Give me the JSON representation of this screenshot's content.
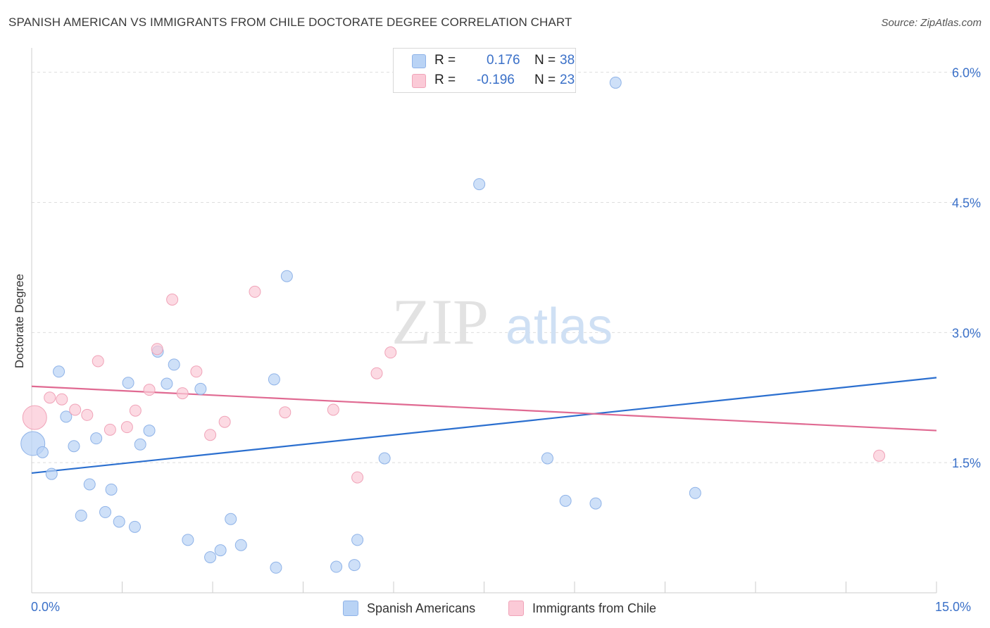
{
  "title": "SPANISH AMERICAN VS IMMIGRANTS FROM CHILE DOCTORATE DEGREE CORRELATION CHART",
  "source": "Source: ZipAtlas.com",
  "watermark": {
    "zip": "ZIP",
    "atlas": "atlas"
  },
  "legend": {
    "rows": [
      {
        "r_label": "R =",
        "r_value": "0.176",
        "n_label": "N =",
        "n_value": "38",
        "color": "#b9d3f5",
        "border": "#8fb3e8"
      },
      {
        "r_label": "R =",
        "r_value": "-0.196",
        "n_label": "N =",
        "n_value": "23",
        "color": "#fbcad7",
        "border": "#f0a3b8"
      }
    ]
  },
  "bottom_legend": [
    {
      "label": "Spanish Americans",
      "color": "#b9d3f5",
      "border": "#8fb3e8"
    },
    {
      "label": "Immigrants from Chile",
      "color": "#fbcad7",
      "border": "#f0a3b8"
    }
  ],
  "chart_data": {
    "type": "scatter",
    "title": "SPANISH AMERICAN VS IMMIGRANTS FROM CHILE DOCTORATE DEGREE CORRELATION CHART",
    "xlabel": "",
    "ylabel": "Doctorate Degree",
    "xlim": [
      0,
      15
    ],
    "ylim": [
      0,
      6.2
    ],
    "x_tick_labels": [
      "0.0%",
      "15.0%"
    ],
    "y_ticks": [
      1.5,
      3.0,
      4.5,
      6.0
    ],
    "y_tick_labels": [
      "1.5%",
      "3.0%",
      "4.5%",
      "6.0%"
    ],
    "grid": "horizontal dashed",
    "legend_position": "top-center",
    "series": [
      {
        "name": "Spanish Americans",
        "color": "#b9d3f5",
        "stroke": "#8fb3e8",
        "trend_color": "#2b6fcf",
        "trend": {
          "x": [
            0,
            15
          ],
          "y": [
            1.38,
            2.48
          ]
        },
        "points": [
          {
            "x": 0.02,
            "y": 1.72,
            "big": true
          },
          {
            "x": 0.18,
            "y": 1.62
          },
          {
            "x": 0.33,
            "y": 1.37
          },
          {
            "x": 0.45,
            "y": 2.55
          },
          {
            "x": 0.57,
            "y": 2.03
          },
          {
            "x": 0.7,
            "y": 1.69
          },
          {
            "x": 0.82,
            "y": 0.89
          },
          {
            "x": 0.96,
            "y": 1.25
          },
          {
            "x": 1.07,
            "y": 1.78
          },
          {
            "x": 1.22,
            "y": 0.93
          },
          {
            "x": 1.32,
            "y": 1.19
          },
          {
            "x": 1.45,
            "y": 0.82
          },
          {
            "x": 1.6,
            "y": 2.42
          },
          {
            "x": 1.71,
            "y": 0.76
          },
          {
            "x": 1.8,
            "y": 1.71
          },
          {
            "x": 1.95,
            "y": 1.87
          },
          {
            "x": 2.09,
            "y": 2.78
          },
          {
            "x": 2.24,
            "y": 2.41
          },
          {
            "x": 2.36,
            "y": 2.63
          },
          {
            "x": 2.59,
            "y": 0.61
          },
          {
            "x": 2.8,
            "y": 2.35
          },
          {
            "x": 2.96,
            "y": 0.41
          },
          {
            "x": 3.13,
            "y": 0.49
          },
          {
            "x": 3.3,
            "y": 0.85
          },
          {
            "x": 3.47,
            "y": 0.55
          },
          {
            "x": 4.02,
            "y": 2.46
          },
          {
            "x": 4.05,
            "y": 0.29
          },
          {
            "x": 4.23,
            "y": 3.65
          },
          {
            "x": 5.05,
            "y": 0.3
          },
          {
            "x": 5.35,
            "y": 0.32
          },
          {
            "x": 5.4,
            "y": 0.61
          },
          {
            "x": 5.85,
            "y": 1.55
          },
          {
            "x": 7.42,
            "y": 4.71
          },
          {
            "x": 8.55,
            "y": 1.55
          },
          {
            "x": 8.85,
            "y": 1.06
          },
          {
            "x": 9.35,
            "y": 1.03
          },
          {
            "x": 9.68,
            "y": 5.88
          },
          {
            "x": 11.0,
            "y": 1.15
          }
        ]
      },
      {
        "name": "Immigrants from Chile",
        "color": "#fbcad7",
        "stroke": "#f0a3b8",
        "trend_color": "#e06a92",
        "trend": {
          "x": [
            0,
            15
          ],
          "y": [
            2.38,
            1.87
          ]
        },
        "points": [
          {
            "x": 0.05,
            "y": 2.02,
            "big": true
          },
          {
            "x": 0.3,
            "y": 2.25
          },
          {
            "x": 0.5,
            "y": 2.23
          },
          {
            "x": 0.72,
            "y": 2.11
          },
          {
            "x": 0.92,
            "y": 2.05
          },
          {
            "x": 1.1,
            "y": 2.67
          },
          {
            "x": 1.3,
            "y": 1.88
          },
          {
            "x": 1.58,
            "y": 1.91
          },
          {
            "x": 1.72,
            "y": 2.1
          },
          {
            "x": 1.95,
            "y": 2.34
          },
          {
            "x": 2.08,
            "y": 2.81
          },
          {
            "x": 2.33,
            "y": 3.38
          },
          {
            "x": 2.5,
            "y": 2.3
          },
          {
            "x": 2.73,
            "y": 2.55
          },
          {
            "x": 2.96,
            "y": 1.82
          },
          {
            "x": 3.2,
            "y": 1.97
          },
          {
            "x": 3.7,
            "y": 3.47
          },
          {
            "x": 4.2,
            "y": 2.08
          },
          {
            "x": 5.0,
            "y": 2.11
          },
          {
            "x": 5.4,
            "y": 1.33
          },
          {
            "x": 5.72,
            "y": 2.53
          },
          {
            "x": 5.95,
            "y": 2.77
          },
          {
            "x": 14.05,
            "y": 1.58
          }
        ]
      }
    ]
  }
}
